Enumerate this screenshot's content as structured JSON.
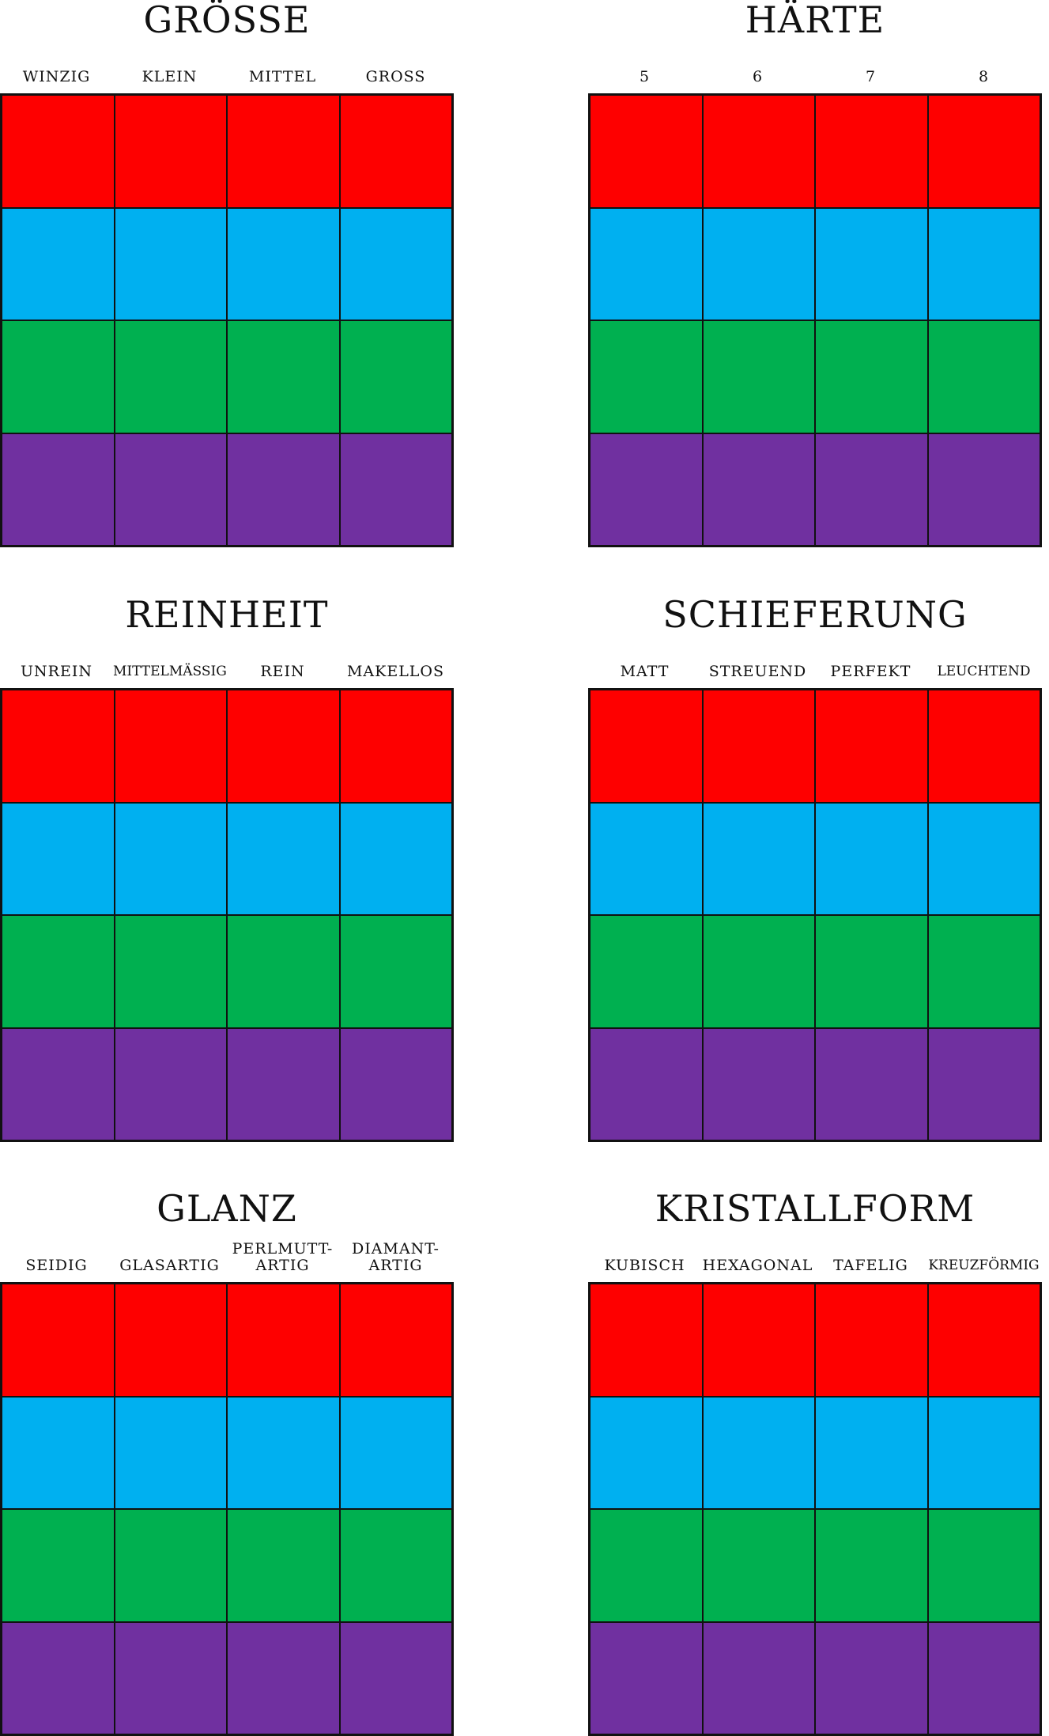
{
  "colors": {
    "row_0": "#fe0000",
    "row_1": "#00b0f0",
    "row_2": "#00b050",
    "row_3": "#7030a0",
    "grid_line": "#111111"
  },
  "panels": [
    {
      "title": "Grösse",
      "columns": [
        "Winzig",
        "Klein",
        "Mittel",
        "Gross"
      ]
    },
    {
      "title": "Härte",
      "columns": [
        "5",
        "6",
        "7",
        "8"
      ]
    },
    {
      "title": "Reinheit",
      "columns": [
        "Unrein",
        "Mittelmässig",
        "Rein",
        "Makellos"
      ]
    },
    {
      "title": "Schieferung",
      "columns": [
        "Matt",
        "Streuend",
        "Perfekt",
        "Leuchtend"
      ]
    },
    {
      "title": "Glanz",
      "columns": [
        "Seidig",
        "Glasartig",
        "Perlmutt-\nartig",
        "Diamant-\nartig"
      ]
    },
    {
      "title": "Kristallform",
      "columns": [
        "Kubisch",
        "Hexagonal",
        "Tafelig",
        "Kreuzförmig"
      ]
    }
  ]
}
